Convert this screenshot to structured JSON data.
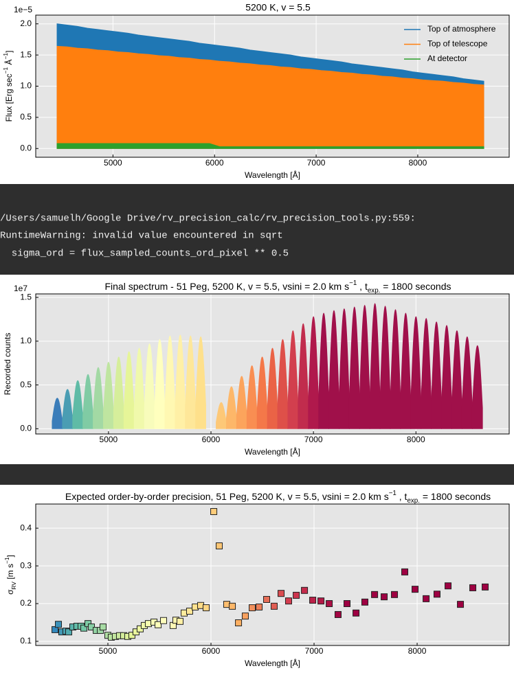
{
  "chart_data": [
    {
      "type": "area",
      "title": "5200 K, v = 5.5",
      "xlabel": "Wavelength [Å]",
      "ylabel": [
        {
          "text": "Flux [Erg sec"
        },
        {
          "text": "−1",
          "shift": "super"
        },
        {
          "text": " Å"
        },
        {
          "text": "−1",
          "shift": "super"
        },
        {
          "text": "]"
        }
      ],
      "offset_label": "1e−5",
      "x": [
        4450,
        4550,
        4650,
        4750,
        4850,
        4950,
        5050,
        5150,
        5250,
        5350,
        5450,
        5550,
        5650,
        5750,
        5850,
        5950,
        6050,
        6150,
        6250,
        6350,
        6450,
        6550,
        6650,
        6750,
        6850,
        6950,
        7050,
        7150,
        7250,
        7350,
        7450,
        7550,
        7650,
        7750,
        7850,
        7950,
        8050,
        8150,
        8250,
        8350,
        8450,
        8550,
        8650
      ],
      "series": [
        {
          "name": "Top of atmosphere",
          "color": "#1f77b4",
          "values": [
            2.0,
            1.98,
            1.96,
            1.93,
            1.91,
            1.89,
            1.87,
            1.85,
            1.82,
            1.8,
            1.78,
            1.76,
            1.74,
            1.72,
            1.69,
            1.67,
            1.65,
            1.63,
            1.61,
            1.58,
            1.56,
            1.54,
            1.52,
            1.5,
            1.47,
            1.45,
            1.43,
            1.41,
            1.39,
            1.36,
            1.34,
            1.32,
            1.3,
            1.28,
            1.26,
            1.23,
            1.21,
            1.19,
            1.17,
            1.15,
            1.12,
            1.1,
            1.08
          ]
        },
        {
          "name": "Top of telescope",
          "color": "#ff7f0e",
          "values": [
            1.64,
            1.63,
            1.61,
            1.6,
            1.58,
            1.57,
            1.55,
            1.54,
            1.52,
            1.51,
            1.49,
            1.48,
            1.46,
            1.45,
            1.43,
            1.42,
            1.4,
            1.39,
            1.37,
            1.36,
            1.34,
            1.33,
            1.31,
            1.3,
            1.28,
            1.27,
            1.25,
            1.24,
            1.22,
            1.21,
            1.19,
            1.18,
            1.16,
            1.15,
            1.13,
            1.12,
            1.1,
            1.09,
            1.08,
            1.06,
            1.05,
            1.03,
            1.02
          ]
        },
        {
          "name": "At detector",
          "color": "#2ca02c",
          "values": [
            0.08,
            0.08,
            0.08,
            0.08,
            0.08,
            0.08,
            0.08,
            0.08,
            0.08,
            0.08,
            0.08,
            0.08,
            0.08,
            0.08,
            0.08,
            0.08,
            0.03,
            0.03,
            0.03,
            0.03,
            0.03,
            0.03,
            0.03,
            0.03,
            0.03,
            0.03,
            0.03,
            0.03,
            0.03,
            0.03,
            0.03,
            0.03,
            0.03,
            0.03,
            0.03,
            0.03,
            0.03,
            0.03,
            0.03,
            0.03,
            0.03,
            0.03,
            0.03
          ]
        }
      ],
      "xlim": [
        4240,
        8900
      ],
      "ylim": [
        -0.14,
        2.14
      ],
      "xticks": [
        5000,
        6000,
        7000,
        8000
      ],
      "yticks": [
        {
          "value": 0,
          "label": "0.0"
        },
        0.5,
        {
          "value": 1,
          "label": "1.0"
        },
        1.5,
        {
          "value": 2,
          "label": "2.0"
        }
      ],
      "grid": true,
      "legend": "upper right"
    },
    {
      "type": "orders",
      "title": [
        {
          "text": "Final spectrum - 51 Peg, 5200 K, v = 5.5, vsini = 2.0 km s"
        },
        {
          "text": "−1",
          "shift": "super"
        },
        {
          "text": " , t"
        },
        {
          "text": "exp.",
          "shift": "sub"
        },
        {
          "text": " = 1800 seconds"
        }
      ],
      "xlabel": "Wavelength [Å]",
      "ylabel": "Recorded counts",
      "offset_label": "1e7",
      "x": [
        4500,
        4600,
        4700,
        4800,
        4900,
        5000,
        5100,
        5200,
        5300,
        5400,
        5500,
        5600,
        5700,
        5800,
        5900,
        6100,
        6200,
        6300,
        6400,
        6500,
        6600,
        6700,
        6800,
        6900,
        7000,
        7100,
        7200,
        7300,
        7400,
        7500,
        7600,
        7700,
        7800,
        7900,
        8000,
        8100,
        8200,
        8300,
        8400,
        8500,
        8600
      ],
      "values": [
        0.35,
        0.45,
        0.55,
        0.62,
        0.7,
        0.76,
        0.82,
        0.88,
        0.92,
        0.97,
        1.02,
        1.06,
        1.07,
        1.06,
        1.05,
        0.3,
        0.48,
        0.6,
        0.72,
        0.82,
        0.92,
        1.02,
        1.12,
        1.2,
        1.28,
        1.32,
        1.35,
        1.37,
        1.39,
        1.41,
        1.43,
        1.4,
        1.36,
        1.32,
        1.28,
        1.26,
        1.22,
        1.18,
        1.12,
        1.05,
        0.95
      ],
      "colors": [
        "#3b7db9",
        "#4a9db3",
        "#5fbba6",
        "#80cba4",
        "#a3d9a4",
        "#bfe5a0",
        "#d6ee9b",
        "#e6f598",
        "#f0f9ab",
        "#f8fcbb",
        "#ffffbe",
        "#fff8b2",
        "#fff0a6",
        "#fee799",
        "#fee08b",
        "#fdc877",
        "#fdb769",
        "#fca45c",
        "#f98e52",
        "#f47849",
        "#ea6346",
        "#de5049",
        "#d23f4e",
        "#c12c4d",
        "#b0194c",
        "#a0104a",
        "#a0104a",
        "#a0104a",
        "#a0104a",
        "#a0104a",
        "#a0104a",
        "#a0104a",
        "#a0104a",
        "#a0104a",
        "#a0104a",
        "#a0104a",
        "#a0104a",
        "#a0104a",
        "#a0104a",
        "#a0104a",
        "#a0104a"
      ],
      "xlim": [
        4290,
        8910
      ],
      "ylim": [
        -0.06,
        1.54
      ],
      "xticks": [
        5000,
        6000,
        7000,
        8000
      ],
      "yticks": [
        {
          "value": 0,
          "label": "0.0"
        },
        0.5,
        {
          "value": 1,
          "label": "1.0"
        },
        1.5
      ],
      "grid": true
    },
    {
      "type": "scatter",
      "title": [
        {
          "text": "Expected order-by-order precision, 51 Peg, 5200 K, v = 5.5, vsini = 2.0 km s"
        },
        {
          "text": "−1",
          "shift": "super"
        },
        {
          "text": " , t"
        },
        {
          "text": "exp.",
          "shift": "sub"
        },
        {
          "text": " = 1800 seconds"
        }
      ],
      "xlabel": "Wavelength [Å]",
      "ylabel": [
        {
          "text": "σ"
        },
        {
          "text": "RV",
          "shift": "sub"
        },
        {
          "text": " [m s"
        },
        {
          "text": "−1",
          "shift": "super"
        },
        {
          "text": "]"
        }
      ],
      "x": [
        4487,
        4520,
        4553,
        4593,
        4620,
        4660,
        4700,
        4740,
        4767,
        4807,
        4840,
        4887,
        4927,
        4953,
        5000,
        5033,
        5073,
        5113,
        5153,
        5193,
        5233,
        5273,
        5313,
        5353,
        5393,
        5447,
        5487,
        5540,
        5633,
        5660,
        5700,
        5740,
        5793,
        5847,
        5900,
        5953,
        6027,
        6080,
        6153,
        6207,
        6267,
        6333,
        6400,
        6467,
        6540,
        6613,
        6680,
        6753,
        6827,
        6907,
        6987,
        7067,
        7147,
        7233,
        7320,
        7407,
        7493,
        7587,
        7680,
        7780,
        7880,
        7980,
        8087,
        8193,
        8300,
        8420,
        8540,
        8660
      ],
      "values": [
        0.131,
        0.145,
        0.125,
        0.127,
        0.125,
        0.138,
        0.14,
        0.14,
        0.135,
        0.147,
        0.138,
        0.129,
        0.129,
        0.138,
        0.116,
        0.111,
        0.113,
        0.115,
        0.115,
        0.113,
        0.116,
        0.125,
        0.133,
        0.142,
        0.147,
        0.151,
        0.144,
        0.155,
        0.142,
        0.156,
        0.153,
        0.175,
        0.18,
        0.191,
        0.195,
        0.189,
        0.444,
        0.353,
        0.198,
        0.193,
        0.149,
        0.167,
        0.189,
        0.191,
        0.211,
        0.193,
        0.227,
        0.207,
        0.222,
        0.235,
        0.209,
        0.207,
        0.2,
        0.171,
        0.2,
        0.175,
        0.204,
        0.224,
        0.218,
        0.224,
        0.284,
        0.238,
        0.213,
        0.225,
        0.247,
        0.198,
        0.242,
        0.244
      ],
      "colormap": [
        "#3288bd",
        "#66c2a5",
        "#abdda4",
        "#e6f598",
        "#ffffbf",
        "#fee08b",
        "#fdae61",
        "#d53e4f",
        "#9e0142",
        "#9e0142",
        "#9e0142"
      ],
      "marker_edge": "#222222",
      "xlim": [
        4300,
        8893
      ],
      "ylim": [
        0.089,
        0.464
      ],
      "xticks": [
        5000,
        6000,
        7000,
        8000
      ],
      "yticks": [
        0.1,
        0.2,
        0.3,
        0.4
      ],
      "grid": true
    }
  ],
  "terminal": {
    "lines": [
      "/Users/samuelh/Google Drive/rv_precision_calc/rv_precision_tools.py:559:",
      "RuntimeWarning: invalid value encountered in sqrt",
      "  sigma_ord = flux_sampled_counts_ord_pixel ** 0.5"
    ]
  }
}
